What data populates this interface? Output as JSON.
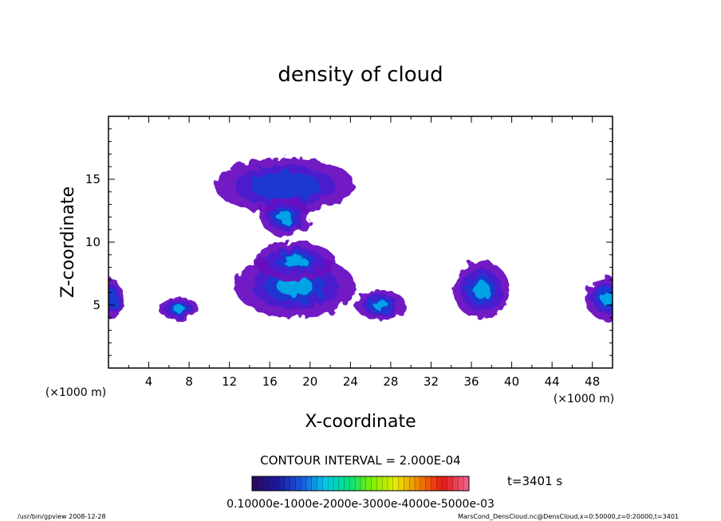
{
  "chart_data": {
    "type": "heatmap",
    "title": "density of cloud",
    "xlabel": "X-coordinate",
    "ylabel": "Z-coordinate",
    "x_unit": "(×1000 m)",
    "y_unit": "(×1000 m)",
    "xlim": [
      0,
      50
    ],
    "ylim": [
      0,
      20
    ],
    "x_ticks": [
      "4",
      "8",
      "12",
      "16",
      "20",
      "24",
      "28",
      "32",
      "36",
      "40",
      "44",
      "48"
    ],
    "y_ticks": [
      "5",
      "10",
      "15"
    ],
    "contour_interval_text": "CONTOUR INTERVAL = 2.000E-04",
    "time_label": "t=3401 s",
    "colorbar": {
      "labels": [
        "0.1000E-10",
        "0.1000E-03",
        "0.2000E-03",
        "0.3000E-03",
        "0.4000E-03",
        "0.5000E-03"
      ],
      "overlapped_text": "0.10000e-1000e-2000e-3000e-4000e-5000e-03",
      "colors": [
        "#2a0a60",
        "#1a1aa0",
        "#1a5ae0",
        "#00c8e8",
        "#00e080",
        "#80f000",
        "#e8e800",
        "#f08000",
        "#e81818",
        "#f06080"
      ]
    },
    "cloud_regions": [
      {
        "x_center": 17.5,
        "z_center": 14.5,
        "x_halfwidth": 7.0,
        "z_halfwidth": 2.2,
        "intensity": 0.45
      },
      {
        "x_center": 17.5,
        "z_center": 12.0,
        "x_halfwidth": 2.5,
        "z_halfwidth": 1.5,
        "intensity": 0.7
      },
      {
        "x_center": 18.5,
        "z_center": 6.5,
        "x_halfwidth": 6.0,
        "z_halfwidth": 2.5,
        "intensity": 0.6
      },
      {
        "x_center": 18.5,
        "z_center": 8.5,
        "x_halfwidth": 4.0,
        "z_halfwidth": 1.5,
        "intensity": 0.55
      },
      {
        "x_center": 7.0,
        "z_center": 4.7,
        "x_halfwidth": 2.0,
        "z_halfwidth": 0.9,
        "intensity": 0.5
      },
      {
        "x_center": 27.0,
        "z_center": 5.0,
        "x_halfwidth": 2.5,
        "z_halfwidth": 1.2,
        "intensity": 0.5
      },
      {
        "x_center": 37.0,
        "z_center": 6.2,
        "x_halfwidth": 2.8,
        "z_halfwidth": 2.3,
        "intensity": 0.55
      },
      {
        "x_center": 49.5,
        "z_center": 5.5,
        "x_halfwidth": 2.2,
        "z_halfwidth": 1.7,
        "intensity": 0.55
      },
      {
        "x_center": 0.3,
        "z_center": 5.5,
        "x_halfwidth": 1.2,
        "z_halfwidth": 1.6,
        "intensity": 0.3
      }
    ]
  },
  "footer": {
    "left": "/usr/bin/gpview  2008-12-28",
    "right": "MarsCond_DensCloud.nc@DensCloud,x=0:50000,z=0:20000,t=3401"
  },
  "colors": {
    "frame": "#000000",
    "background": "#ffffff",
    "outer_cloud": "#6a10c0",
    "mid_cloud": "#1a3ad0",
    "core_cloud": "#00b0e8"
  }
}
